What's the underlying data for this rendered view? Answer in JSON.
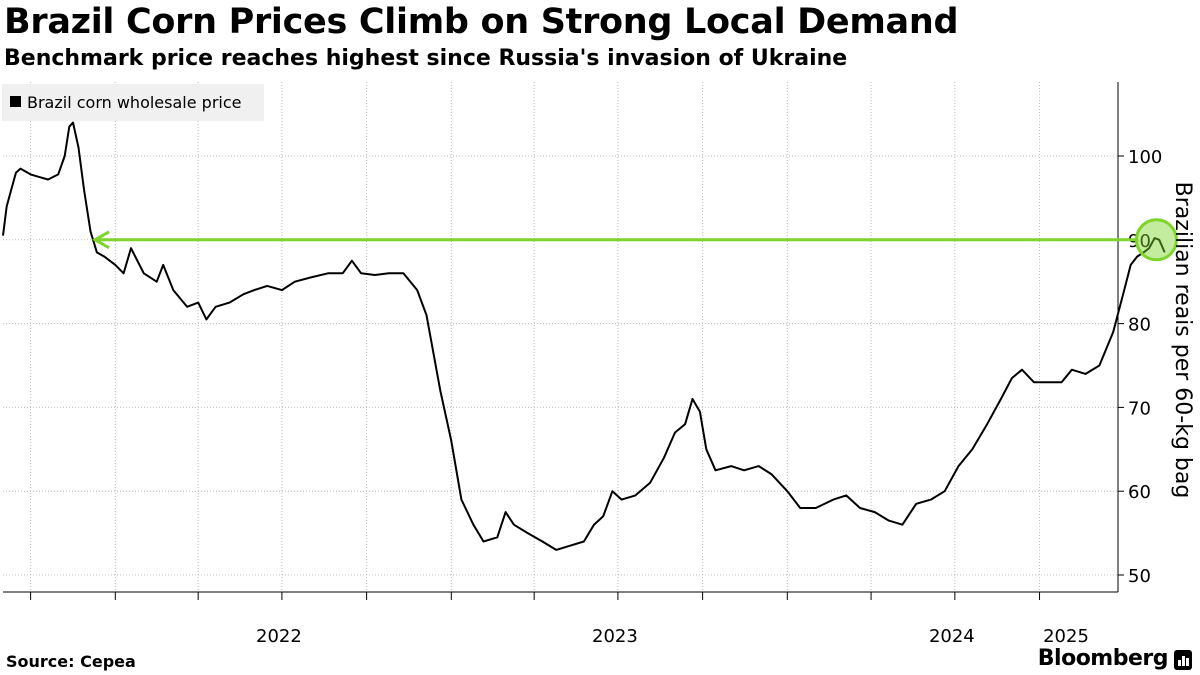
{
  "chart_data": {
    "type": "line",
    "title": "Brazil Corn Prices Climb on Strong Local Demand",
    "subtitle": "Benchmark price reaches highest since Russia's invasion of Ukraine",
    "ylabel": "Brazilian reais per 60-kg bag",
    "ylim": [
      48,
      110
    ],
    "yticks": [
      50,
      60,
      70,
      80,
      90,
      100
    ],
    "xticks": [
      "2022",
      "2023",
      "2024",
      "2025"
    ],
    "legend_position": "top-left",
    "series": [
      {
        "name": "Brazil corn wholesale price",
        "color": "#000000",
        "points": [
          [
            "2021-09-01",
            90.5
          ],
          [
            "2021-09-05",
            94
          ],
          [
            "2021-09-10",
            96
          ],
          [
            "2021-09-15",
            98
          ],
          [
            "2021-09-20",
            98.5
          ],
          [
            "2021-10-01",
            97.8
          ],
          [
            "2021-10-10",
            97.5
          ],
          [
            "2021-10-20",
            97.2
          ],
          [
            "2021-10-31",
            97.8
          ],
          [
            "2021-11-07",
            100
          ],
          [
            "2021-11-12",
            103.5
          ],
          [
            "2021-11-16",
            104
          ],
          [
            "2021-11-22",
            101
          ],
          [
            "2021-11-28",
            96
          ],
          [
            "2021-12-05",
            91
          ],
          [
            "2021-12-12",
            88.5
          ],
          [
            "2021-12-20",
            88
          ],
          [
            "2022-01-01",
            87
          ],
          [
            "2022-01-10",
            86
          ],
          [
            "2022-01-18",
            89
          ],
          [
            "2022-02-01",
            86
          ],
          [
            "2022-02-15",
            85
          ],
          [
            "2022-02-22",
            87
          ],
          [
            "2022-03-05",
            84
          ],
          [
            "2022-03-20",
            82
          ],
          [
            "2022-04-01",
            82.5
          ],
          [
            "2022-04-10",
            80.5
          ],
          [
            "2022-04-20",
            82
          ],
          [
            "2022-05-05",
            82.5
          ],
          [
            "2022-05-20",
            83.5
          ],
          [
            "2022-06-01",
            84
          ],
          [
            "2022-06-15",
            84.5
          ],
          [
            "2022-07-01",
            84
          ],
          [
            "2022-07-15",
            85
          ],
          [
            "2022-08-01",
            85.5
          ],
          [
            "2022-08-20",
            86
          ],
          [
            "2022-09-05",
            86
          ],
          [
            "2022-09-15",
            87.5
          ],
          [
            "2022-09-25",
            86
          ],
          [
            "2022-10-10",
            85.8
          ],
          [
            "2022-10-25",
            86
          ],
          [
            "2022-11-10",
            86
          ],
          [
            "2022-11-25",
            84
          ],
          [
            "2022-12-05",
            81
          ],
          [
            "2022-12-20",
            72
          ],
          [
            "2023-01-01",
            66
          ],
          [
            "2023-01-12",
            59
          ],
          [
            "2023-01-25",
            56
          ],
          [
            "2023-02-05",
            54
          ],
          [
            "2023-02-20",
            54.5
          ],
          [
            "2023-03-01",
            57.5
          ],
          [
            "2023-03-10",
            56
          ],
          [
            "2023-03-25",
            55
          ],
          [
            "2023-04-10",
            54
          ],
          [
            "2023-04-25",
            53
          ],
          [
            "2023-05-10",
            53.5
          ],
          [
            "2023-05-25",
            54
          ],
          [
            "2023-06-05",
            56
          ],
          [
            "2023-06-15",
            57
          ],
          [
            "2023-06-25",
            60
          ],
          [
            "2023-07-05",
            59
          ],
          [
            "2023-07-20",
            59.5
          ],
          [
            "2023-08-05",
            61
          ],
          [
            "2023-08-20",
            64
          ],
          [
            "2023-09-01",
            67
          ],
          [
            "2023-09-12",
            68
          ],
          [
            "2023-09-20",
            71
          ],
          [
            "2023-09-28",
            69.5
          ],
          [
            "2023-10-05",
            65
          ],
          [
            "2023-10-15",
            62.5
          ],
          [
            "2023-11-01",
            63
          ],
          [
            "2023-11-15",
            62.5
          ],
          [
            "2023-12-01",
            63
          ],
          [
            "2023-12-15",
            62
          ],
          [
            "2024-01-01",
            60
          ],
          [
            "2024-01-15",
            58
          ],
          [
            "2024-02-01",
            58
          ],
          [
            "2024-02-20",
            59
          ],
          [
            "2024-03-05",
            59.5
          ],
          [
            "2024-03-20",
            58
          ],
          [
            "2024-04-05",
            57.5
          ],
          [
            "2024-04-20",
            56.5
          ],
          [
            "2024-05-05",
            56
          ],
          [
            "2024-05-20",
            58.5
          ],
          [
            "2024-06-05",
            59
          ],
          [
            "2024-06-20",
            60
          ],
          [
            "2024-07-05",
            63
          ],
          [
            "2024-07-20",
            65
          ],
          [
            "2024-08-05",
            68
          ],
          [
            "2024-08-20",
            71
          ],
          [
            "2024-09-01",
            73.5
          ],
          [
            "2024-09-12",
            74.5
          ],
          [
            "2024-09-25",
            73
          ],
          [
            "2024-10-10",
            73
          ],
          [
            "2024-10-25",
            73
          ],
          [
            "2024-11-05",
            74.5
          ],
          [
            "2024-11-20",
            74
          ],
          [
            "2024-12-05",
            75
          ],
          [
            "2024-12-20",
            79
          ],
          [
            "2025-01-01",
            84
          ],
          [
            "2025-01-08",
            87
          ],
          [
            "2025-01-15",
            88
          ],
          [
            "2025-01-22",
            88.5
          ],
          [
            "2025-01-28",
            89
          ],
          [
            "2025-02-03",
            90.2
          ],
          [
            "2025-02-08",
            90
          ],
          [
            "2025-02-14",
            88.5
          ]
        ]
      }
    ],
    "annotation": {
      "type": "reference-line",
      "value": 90,
      "from": "2021-12-10",
      "to": "2025-02-05",
      "color": "#7dd42a"
    }
  },
  "footer": {
    "source": "Source:  Cepea",
    "brand": "Bloomberg"
  }
}
